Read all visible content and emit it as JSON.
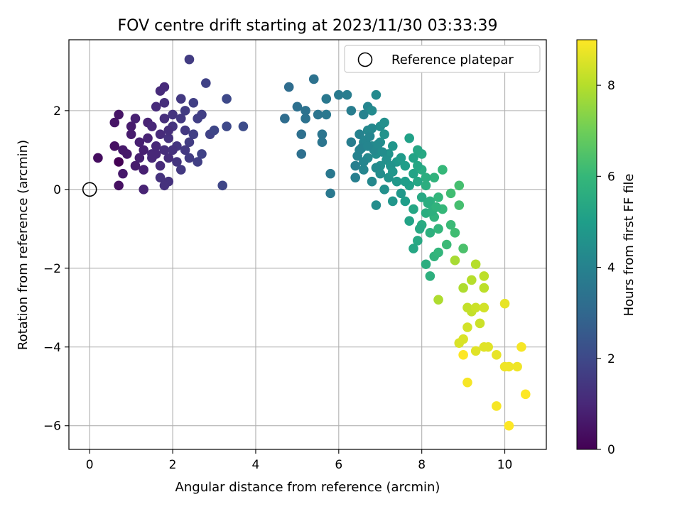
{
  "chart_data": {
    "type": "scatter",
    "title": "FOV centre drift starting at 2023/11/30 03:33:39",
    "xlabel": "Angular distance from reference (arcmin)",
    "ylabel": "Rotation from reference (arcmin)",
    "xlim": [
      -0.5,
      11.0
    ],
    "ylim": [
      -6.6,
      3.8
    ],
    "xticks": [
      0,
      2,
      4,
      6,
      8,
      10
    ],
    "xtick_labels": [
      "0",
      "2",
      "4",
      "6",
      "8",
      "10"
    ],
    "yticks": [
      -6,
      -4,
      -2,
      0,
      2
    ],
    "ytick_labels": [
      "−6",
      "−4",
      "−2",
      "0",
      "2"
    ],
    "grid": true,
    "legend": {
      "placement": "top-right",
      "entries": [
        "Reference platepar"
      ]
    },
    "reference_point": {
      "x": 0,
      "y": 0,
      "label": "Reference platepar"
    },
    "colorbar": {
      "label": "Hours from first FF file",
      "colormap": "viridis",
      "range": [
        0,
        9
      ],
      "ticks": [
        0,
        2,
        4,
        6,
        8
      ],
      "tick_labels": [
        "0",
        "2",
        "4",
        "6",
        "8"
      ]
    },
    "colormap_stops": [
      "#440154",
      "#482878",
      "#3e4989",
      "#31688e",
      "#26828e",
      "#1f9e89",
      "#35b779",
      "#6ece58",
      "#b5de2b",
      "#fde725"
    ],
    "points": [
      [
        0.2,
        0.8,
        0.3
      ],
      [
        0.7,
        0.7,
        0.0
      ],
      [
        0.7,
        0.1,
        0.4
      ],
      [
        0.6,
        1.1,
        0.4
      ],
      [
        0.6,
        1.7,
        0.5
      ],
      [
        0.7,
        1.9,
        0.5
      ],
      [
        0.8,
        1.0,
        0.6
      ],
      [
        0.8,
        0.4,
        0.6
      ],
      [
        0.9,
        0.9,
        0.6
      ],
      [
        1.0,
        1.4,
        0.7
      ],
      [
        1.0,
        1.6,
        0.7
      ],
      [
        1.1,
        0.6,
        0.7
      ],
      [
        1.2,
        0.8,
        0.8
      ],
      [
        1.2,
        1.2,
        0.8
      ],
      [
        1.3,
        1.0,
        0.8
      ],
      [
        1.3,
        0.5,
        0.8
      ],
      [
        1.3,
        0.0,
        0.9
      ],
      [
        1.4,
        1.7,
        0.9
      ],
      [
        1.4,
        1.3,
        0.9
      ],
      [
        1.5,
        0.8,
        1.0
      ],
      [
        1.5,
        1.6,
        1.0
      ],
      [
        1.6,
        1.1,
        1.0
      ],
      [
        1.6,
        0.9,
        1.0
      ],
      [
        1.7,
        0.6,
        1.1
      ],
      [
        1.7,
        1.4,
        1.1
      ],
      [
        1.7,
        2.5,
        1.1
      ],
      [
        1.8,
        2.6,
        1.1
      ],
      [
        1.8,
        2.2,
        1.2
      ],
      [
        1.8,
        1.8,
        1.2
      ],
      [
        1.8,
        1.0,
        1.2
      ],
      [
        1.9,
        0.8,
        1.2
      ],
      [
        1.9,
        1.3,
        1.3
      ],
      [
        1.9,
        0.2,
        1.3
      ],
      [
        1.8,
        0.1,
        1.3
      ],
      [
        1.7,
        0.3,
        1.3
      ],
      [
        2.0,
        1.9,
        1.4
      ],
      [
        2.0,
        1.6,
        1.4
      ],
      [
        2.1,
        1.1,
        1.4
      ],
      [
        2.1,
        0.7,
        1.4
      ],
      [
        2.2,
        2.3,
        1.5
      ],
      [
        2.2,
        1.8,
        1.5
      ],
      [
        2.2,
        0.5,
        1.5
      ],
      [
        2.3,
        1.5,
        1.5
      ],
      [
        2.3,
        2.0,
        1.6
      ],
      [
        2.4,
        1.2,
        1.6
      ],
      [
        2.4,
        0.8,
        1.6
      ],
      [
        2.4,
        3.3,
        1.6
      ],
      [
        2.5,
        1.4,
        1.7
      ],
      [
        2.5,
        2.2,
        1.7
      ],
      [
        2.6,
        0.7,
        1.7
      ],
      [
        2.7,
        1.9,
        1.7
      ],
      [
        2.7,
        0.9,
        1.8
      ],
      [
        2.8,
        2.7,
        1.8
      ],
      [
        2.9,
        1.4,
        1.8
      ],
      [
        3.0,
        1.5,
        1.9
      ],
      [
        3.2,
        0.1,
        1.9
      ],
      [
        3.3,
        1.6,
        2.0
      ],
      [
        3.3,
        2.3,
        2.0
      ],
      [
        3.7,
        1.6,
        2.1
      ],
      [
        1.1,
        1.8,
        0.8
      ],
      [
        1.5,
        0.9,
        1.0
      ],
      [
        2.0,
        1.0,
        1.3
      ],
      [
        2.3,
        1.0,
        1.5
      ],
      [
        1.9,
        1.5,
        1.2
      ],
      [
        2.6,
        1.8,
        1.7
      ],
      [
        1.6,
        2.1,
        1.1
      ],
      [
        4.7,
        1.8,
        3.2
      ],
      [
        4.8,
        2.6,
        3.2
      ],
      [
        5.0,
        2.1,
        3.3
      ],
      [
        5.1,
        1.4,
        3.3
      ],
      [
        5.1,
        0.9,
        3.3
      ],
      [
        5.2,
        2.0,
        3.4
      ],
      [
        5.2,
        1.8,
        3.4
      ],
      [
        5.4,
        2.8,
        3.4
      ],
      [
        5.5,
        1.9,
        3.5
      ],
      [
        5.6,
        1.4,
        3.5
      ],
      [
        5.6,
        1.2,
        3.5
      ],
      [
        5.7,
        2.3,
        3.6
      ],
      [
        5.7,
        1.9,
        3.6
      ],
      [
        5.8,
        0.4,
        3.6
      ],
      [
        5.8,
        -0.1,
        3.6
      ],
      [
        6.0,
        2.4,
        3.7
      ],
      [
        6.2,
        2.4,
        3.8
      ],
      [
        6.3,
        1.2,
        3.8
      ],
      [
        6.3,
        2.0,
        3.8
      ],
      [
        6.4,
        0.6,
        3.9
      ],
      [
        6.4,
        0.3,
        3.9
      ],
      [
        6.5,
        1.4,
        4.0
      ],
      [
        6.5,
        1.0,
        4.0
      ],
      [
        6.6,
        1.9,
        4.0
      ],
      [
        6.6,
        1.2,
        4.1
      ],
      [
        6.6,
        0.5,
        4.1
      ],
      [
        6.7,
        2.1,
        4.1
      ],
      [
        6.7,
        1.5,
        4.2
      ],
      [
        6.7,
        0.8,
        4.2
      ],
      [
        6.8,
        0.2,
        4.2
      ],
      [
        6.8,
        1.1,
        4.3
      ],
      [
        6.8,
        2.0,
        4.3
      ],
      [
        6.9,
        2.4,
        4.3
      ],
      [
        6.9,
        0.9,
        4.4
      ],
      [
        6.9,
        -0.4,
        4.4
      ],
      [
        7.0,
        1.6,
        4.4
      ],
      [
        7.0,
        0.6,
        4.5
      ],
      [
        7.0,
        1.2,
        4.5
      ],
      [
        7.1,
        0.0,
        4.5
      ],
      [
        7.1,
        1.4,
        4.6
      ],
      [
        7.2,
        0.3,
        4.6
      ],
      [
        7.2,
        0.9,
        4.6
      ],
      [
        7.3,
        -0.3,
        4.7
      ],
      [
        7.3,
        1.1,
        4.7
      ],
      [
        7.4,
        0.7,
        4.8
      ],
      [
        7.4,
        0.2,
        4.8
      ],
      [
        7.5,
        -0.1,
        4.8
      ],
      [
        7.5,
        0.8,
        4.9
      ],
      [
        6.55,
        1.05,
        4.0
      ],
      [
        6.65,
        1.25,
        4.1
      ],
      [
        6.75,
        1.35,
        4.1
      ],
      [
        6.85,
        1.0,
        4.2
      ],
      [
        6.95,
        1.15,
        4.3
      ],
      [
        7.05,
        0.95,
        4.4
      ],
      [
        7.15,
        0.75,
        4.5
      ],
      [
        7.25,
        0.6,
        4.6
      ],
      [
        6.45,
        0.85,
        4.0
      ],
      [
        6.6,
        0.7,
        4.1
      ],
      [
        6.9,
        0.55,
        4.3
      ],
      [
        7.0,
        0.4,
        4.4
      ],
      [
        7.3,
        0.45,
        4.7
      ],
      [
        6.8,
        1.55,
        4.2
      ],
      [
        7.1,
        1.7,
        4.5
      ],
      [
        6.7,
        1.1,
        4.1
      ],
      [
        7.6,
        -0.3,
        5.0
      ],
      [
        7.6,
        0.6,
        5.0
      ],
      [
        7.7,
        0.1,
        5.1
      ],
      [
        7.7,
        -0.8,
        5.2
      ],
      [
        7.8,
        0.4,
        5.2
      ],
      [
        7.8,
        -0.5,
        5.3
      ],
      [
        7.9,
        0.2,
        5.3
      ],
      [
        7.9,
        -1.3,
        5.4
      ],
      [
        8.0,
        -0.2,
        5.4
      ],
      [
        8.0,
        0.5,
        5.5
      ],
      [
        8.0,
        -0.9,
        5.5
      ],
      [
        8.1,
        -0.6,
        5.6
      ],
      [
        8.1,
        0.1,
        5.6
      ],
      [
        8.2,
        -1.1,
        5.7
      ],
      [
        8.2,
        -0.3,
        5.7
      ],
      [
        8.3,
        0.3,
        5.8
      ],
      [
        8.3,
        -0.7,
        5.8
      ],
      [
        8.4,
        -1.0,
        5.9
      ],
      [
        8.4,
        -0.2,
        5.9
      ],
      [
        8.5,
        0.5,
        6.0
      ],
      [
        8.5,
        -0.5,
        6.0
      ],
      [
        8.6,
        -1.4,
        6.1
      ],
      [
        8.7,
        -0.9,
        6.1
      ],
      [
        8.7,
        -0.1,
        6.2
      ],
      [
        8.8,
        -1.1,
        6.2
      ],
      [
        8.9,
        -0.4,
        6.3
      ],
      [
        8.9,
        0.1,
        6.3
      ],
      [
        9.0,
        -1.5,
        6.4
      ],
      [
        7.7,
        1.3,
        5.1
      ],
      [
        7.6,
        0.2,
        5.0
      ],
      [
        7.8,
        0.8,
        5.2
      ],
      [
        7.9,
        0.6,
        5.3
      ],
      [
        8.0,
        0.9,
        5.4
      ],
      [
        8.1,
        0.3,
        5.6
      ],
      [
        8.2,
        -2.2,
        5.7
      ],
      [
        8.1,
        -1.9,
        5.6
      ],
      [
        8.3,
        -1.7,
        5.8
      ],
      [
        8.4,
        -1.6,
        5.9
      ],
      [
        7.8,
        -1.5,
        5.3
      ],
      [
        7.95,
        -1.0,
        5.4
      ],
      [
        8.15,
        -0.35,
        5.6
      ],
      [
        8.25,
        -0.55,
        5.7
      ],
      [
        8.35,
        -0.45,
        5.8
      ],
      [
        7.9,
        1.0,
        5.3
      ],
      [
        8.8,
        -1.8,
        7.8
      ],
      [
        9.0,
        -2.5,
        7.9
      ],
      [
        9.2,
        -2.3,
        8.0
      ],
      [
        9.3,
        -1.9,
        8.0
      ],
      [
        9.5,
        -2.2,
        8.1
      ],
      [
        9.5,
        -2.5,
        8.1
      ],
      [
        9.1,
        -3.0,
        8.2
      ],
      [
        9.2,
        -3.1,
        8.2
      ],
      [
        9.3,
        -3.0,
        8.3
      ],
      [
        9.4,
        -3.4,
        8.3
      ],
      [
        9.5,
        -3.0,
        8.4
      ],
      [
        9.1,
        -3.5,
        8.4
      ],
      [
        9.0,
        -3.8,
        8.5
      ],
      [
        8.9,
        -3.9,
        8.5
      ],
      [
        9.3,
        -4.1,
        8.6
      ],
      [
        9.5,
        -4.0,
        8.6
      ],
      [
        9.8,
        -4.2,
        8.7
      ],
      [
        10.0,
        -2.9,
        8.7
      ],
      [
        10.0,
        -4.5,
        8.8
      ],
      [
        10.1,
        -4.5,
        8.8
      ],
      [
        10.3,
        -4.5,
        8.8
      ],
      [
        10.4,
        -4.0,
        8.9
      ],
      [
        9.1,
        -4.9,
        8.9
      ],
      [
        9.8,
        -5.5,
        8.9
      ],
      [
        10.5,
        -5.2,
        9.0
      ],
      [
        10.1,
        -6.0,
        9.0
      ],
      [
        9.0,
        -4.2,
        9.0
      ],
      [
        8.4,
        -2.8,
        7.9
      ],
      [
        9.6,
        -4.0,
        8.6
      ]
    ]
  }
}
